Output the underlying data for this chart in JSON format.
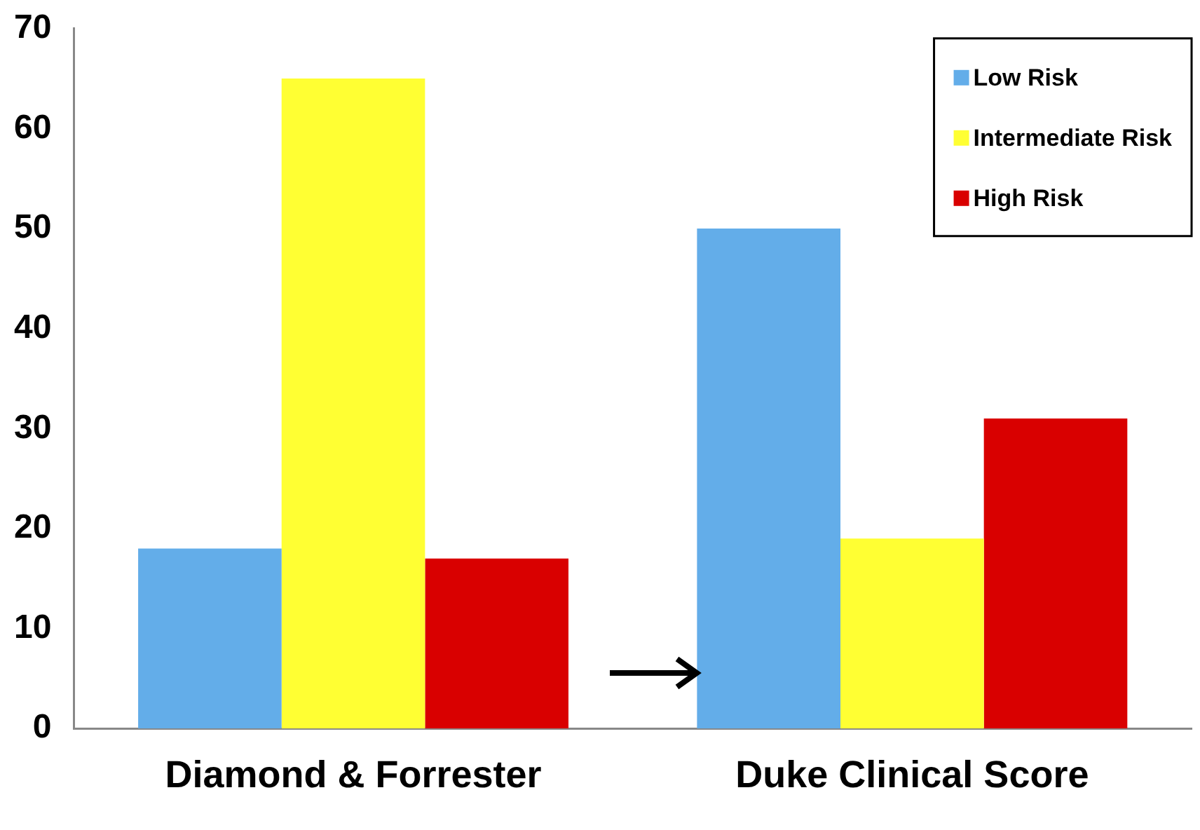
{
  "chart_data": {
    "type": "bar",
    "categories": [
      "Diamond & Forrester",
      "Duke Clinical Score"
    ],
    "series": [
      {
        "name": "Low Risk",
        "color": "#63ade9",
        "values": [
          18,
          50
        ]
      },
      {
        "name": "Intermediate Risk",
        "color": "#ffff33",
        "values": [
          65,
          19
        ]
      },
      {
        "name": "High Risk",
        "color": "#d90000",
        "values": [
          17,
          31
        ]
      }
    ],
    "ylim": [
      0,
      70
    ],
    "yticks": [
      0,
      10,
      20,
      30,
      40,
      50,
      60,
      70
    ],
    "grid": false,
    "legend": "top right"
  }
}
